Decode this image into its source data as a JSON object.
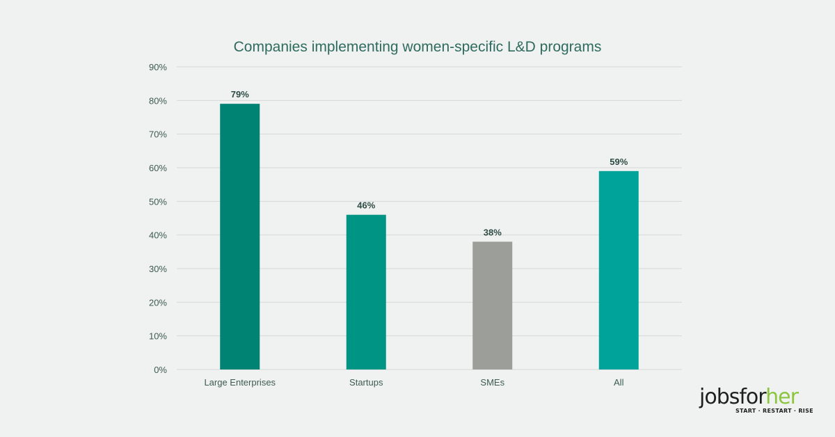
{
  "chart_data": {
    "type": "bar",
    "title": "Companies implementing women-specific L&D programs",
    "categories": [
      "Large Enterprises",
      "Startups",
      "SMEs",
      "All"
    ],
    "values": [
      79,
      46,
      38,
      59
    ],
    "data_labels": [
      "79%",
      "46%",
      "38%",
      "59%"
    ],
    "bar_colors": [
      "#008373",
      "#009484",
      "#9c9e99",
      "#00a39a"
    ],
    "ylim": [
      0,
      90
    ],
    "yticks": [
      "0%",
      "10%",
      "20%",
      "30%",
      "40%",
      "50%",
      "60%",
      "70%",
      "80%",
      "90%"
    ],
    "grid": true,
    "xlabel": "",
    "ylabel": ""
  },
  "logo": {
    "text_main": "jobsfor",
    "text_accent": "her",
    "tagline": "START · RESTART · RISE"
  }
}
